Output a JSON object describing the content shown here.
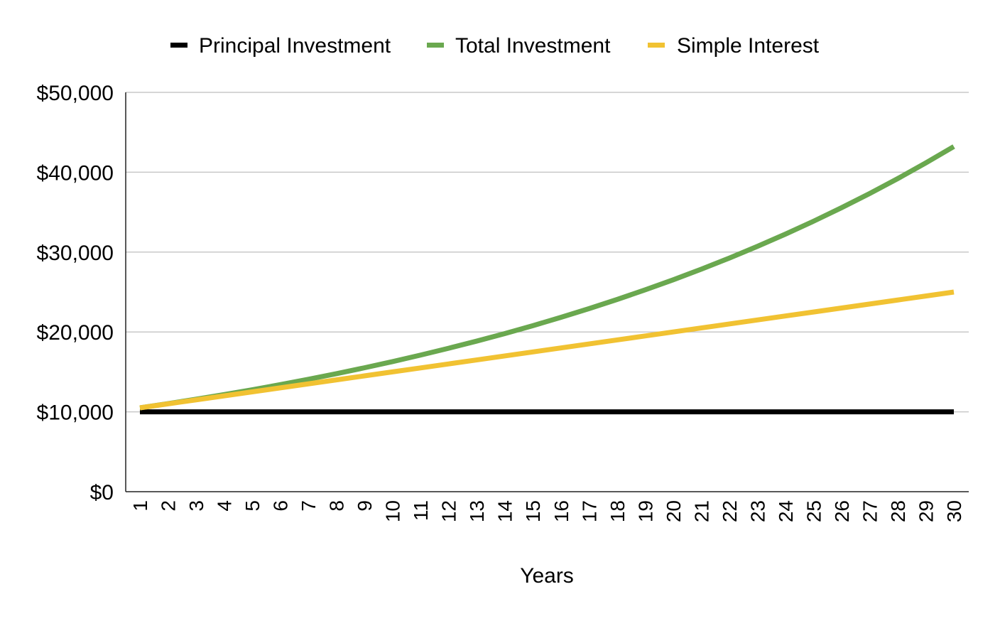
{
  "chart_data": {
    "type": "line",
    "x": [
      1,
      2,
      3,
      4,
      5,
      6,
      7,
      8,
      9,
      10,
      11,
      12,
      13,
      14,
      15,
      16,
      17,
      18,
      19,
      20,
      21,
      22,
      23,
      24,
      25,
      26,
      27,
      28,
      29,
      30
    ],
    "xlabel": "Years",
    "ylabel": "",
    "ylim": [
      0,
      50000
    ],
    "y_ticks": [
      0,
      10000,
      20000,
      30000,
      40000,
      50000
    ],
    "y_tick_labels": [
      "$0",
      "$10,000",
      "$20,000",
      "$30,000",
      "$40,000",
      "$50,000"
    ],
    "grid": true,
    "legend_position": "top",
    "series": [
      {
        "name": "Principal Investment",
        "color": "#000000",
        "values": [
          10000,
          10000,
          10000,
          10000,
          10000,
          10000,
          10000,
          10000,
          10000,
          10000,
          10000,
          10000,
          10000,
          10000,
          10000,
          10000,
          10000,
          10000,
          10000,
          10000,
          10000,
          10000,
          10000,
          10000,
          10000,
          10000,
          10000,
          10000,
          10000,
          10000
        ]
      },
      {
        "name": "Total Investment",
        "color": "#6aa84f",
        "values": [
          10500,
          11025,
          11576,
          12155,
          12763,
          13401,
          14071,
          14775,
          15513,
          16289,
          17103,
          17959,
          18856,
          19799,
          20789,
          21829,
          22920,
          24066,
          25270,
          26533,
          27860,
          29253,
          30715,
          32251,
          33864,
          35557,
          37335,
          39201,
          41161,
          43219
        ]
      },
      {
        "name": "Simple Interest",
        "color": "#f1c232",
        "values": [
          10500,
          11000,
          11500,
          12000,
          12500,
          13000,
          13500,
          14000,
          14500,
          15000,
          15500,
          16000,
          16500,
          17000,
          17500,
          18000,
          18500,
          19000,
          19500,
          20000,
          20500,
          21000,
          21500,
          22000,
          22500,
          23000,
          23500,
          24000,
          24500,
          25000
        ]
      }
    ]
  }
}
